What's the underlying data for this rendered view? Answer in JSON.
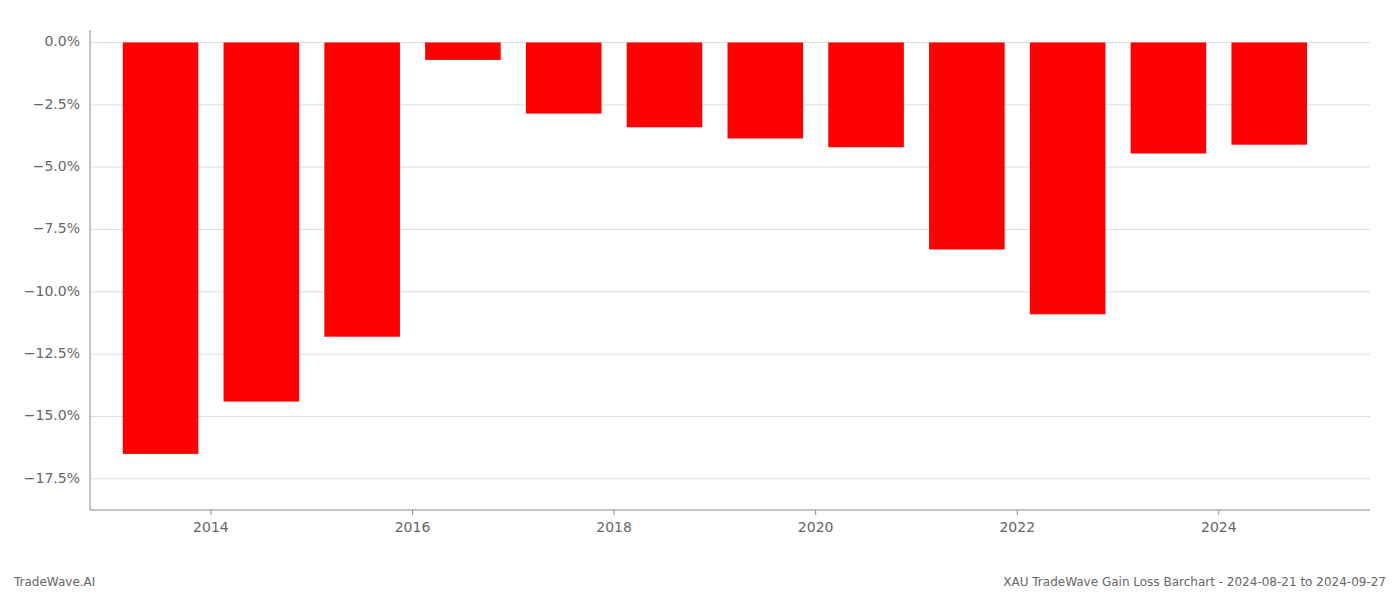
{
  "chart_data": {
    "type": "bar",
    "x": [
      2013.5,
      2014.5,
      2015.5,
      2016.5,
      2017.5,
      2018.5,
      2019.5,
      2020.5,
      2021.5,
      2022.5,
      2023.5,
      2024.5
    ],
    "values": [
      -16.5,
      -14.4,
      -11.8,
      -0.7,
      -2.85,
      -3.4,
      -3.85,
      -4.2,
      -8.3,
      -10.9,
      -4.45,
      -4.1
    ],
    "color": "#ff0000",
    "xlim": [
      2012.8,
      2025.5
    ],
    "xticks": [
      2014,
      2016,
      2018,
      2020,
      2022,
      2024
    ],
    "ylim": [
      -18.75,
      0.5
    ],
    "yticks": [
      {
        "value": 0.0,
        "label": "0.0%"
      },
      {
        "value": -2.5,
        "label": "−2.5%"
      },
      {
        "value": -5.0,
        "label": "−5.0%"
      },
      {
        "value": -7.5,
        "label": "−7.5%"
      },
      {
        "value": -10.0,
        "label": "−10.0%"
      },
      {
        "value": -12.5,
        "label": "−12.5%"
      },
      {
        "value": -15.0,
        "label": "−15.0%"
      },
      {
        "value": -17.5,
        "label": "−17.5%"
      }
    ],
    "grid": true,
    "annotations": [
      "TradeWave.AI",
      "XAU TradeWave Gain Loss Barchart - 2024-08-21 to 2024-09-27"
    ]
  }
}
